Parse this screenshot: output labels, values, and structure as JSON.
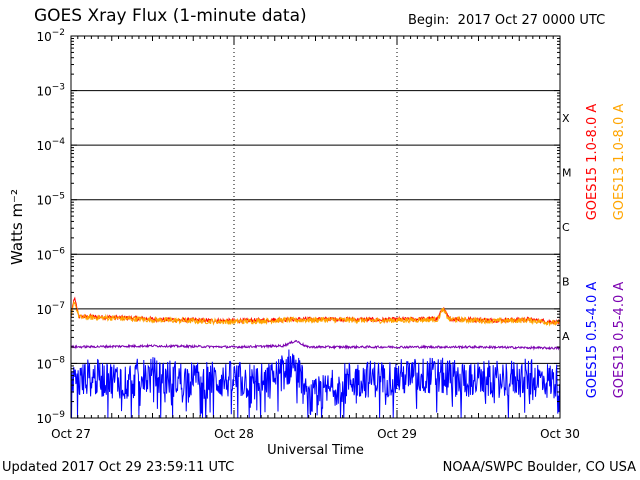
{
  "header": {
    "title": "GOES Xray Flux (1-minute data)",
    "begin_label": "Begin:",
    "begin_value": "2017 Oct 27 0000 UTC"
  },
  "footer": {
    "updated": "Updated 2017 Oct 29 23:59:11 UTC",
    "credit": "NOAA/SWPC Boulder, CO USA"
  },
  "chart_data": {
    "type": "line",
    "title": "GOES Xray Flux (1-minute data)",
    "xlabel": "Universal Time",
    "ylabel": "Watts m⁻²",
    "y_scale": "log",
    "ylim": [
      1e-09,
      0.01
    ],
    "xlim": [
      0,
      3
    ],
    "x_ticks": [
      {
        "value": 0,
        "label": "Oct 27"
      },
      {
        "value": 1,
        "label": "Oct 28"
      },
      {
        "value": 2,
        "label": "Oct 29"
      },
      {
        "value": 3,
        "label": "Oct 30"
      }
    ],
    "y_ticks": [
      {
        "value": 0.01,
        "base": "10",
        "exp": "−2"
      },
      {
        "value": 0.001,
        "base": "10",
        "exp": "−3"
      },
      {
        "value": 0.0001,
        "base": "10",
        "exp": "−4"
      },
      {
        "value": 1e-05,
        "base": "10",
        "exp": "−5"
      },
      {
        "value": 1e-06,
        "base": "10",
        "exp": "−6"
      },
      {
        "value": 1e-07,
        "base": "10",
        "exp": "−7"
      },
      {
        "value": 1e-08,
        "base": "10",
        "exp": "−8"
      },
      {
        "value": 1e-09,
        "base": "10",
        "exp": "−9"
      }
    ],
    "flare_classes": [
      {
        "label": "X",
        "lower": 0.0001
      },
      {
        "label": "M",
        "lower": 1e-05
      },
      {
        "label": "C",
        "lower": 1e-06
      },
      {
        "label": "B",
        "lower": 1e-07
      },
      {
        "label": "A",
        "lower": 1e-08
      }
    ],
    "grid": true,
    "legend_position": "right, rotated",
    "series": [
      {
        "name": "GOES15 1.0-8.0 A",
        "color": "#ff0000",
        "points": [
          [
            0,
            6.8e-08
          ],
          [
            0.02,
            1.6e-07
          ],
          [
            0.05,
            7.2e-08
          ],
          [
            0.25,
            7e-08
          ],
          [
            0.5,
            6.5e-08
          ],
          [
            0.75,
            6.2e-08
          ],
          [
            1.0,
            6e-08
          ],
          [
            1.3,
            6.4e-08
          ],
          [
            1.6,
            6.5e-08
          ],
          [
            1.9,
            6.3e-08
          ],
          [
            2.25,
            6.6e-08
          ],
          [
            2.28,
            1.05e-07
          ],
          [
            2.32,
            6.6e-08
          ],
          [
            2.6,
            6.2e-08
          ],
          [
            2.8,
            6.4e-08
          ],
          [
            3.0,
            5.6e-08
          ]
        ]
      },
      {
        "name": "GOES13 1.0-8.0 A",
        "color": "#ffa500",
        "points": [
          [
            0,
            6.6e-08
          ],
          [
            0.02,
            1.4e-07
          ],
          [
            0.05,
            7e-08
          ],
          [
            0.25,
            6.8e-08
          ],
          [
            0.5,
            6.3e-08
          ],
          [
            0.75,
            6e-08
          ],
          [
            1.0,
            5.8e-08
          ],
          [
            1.3,
            6.2e-08
          ],
          [
            1.6,
            6.3e-08
          ],
          [
            1.9,
            6.1e-08
          ],
          [
            2.25,
            6.4e-08
          ],
          [
            2.28,
            9.8e-08
          ],
          [
            2.32,
            6.4e-08
          ],
          [
            2.6,
            6e-08
          ],
          [
            2.8,
            6.2e-08
          ],
          [
            3.0,
            5.4e-08
          ]
        ]
      },
      {
        "name": "GOES15 0.5-4.0 A",
        "color": "#0000ff",
        "points": [
          [
            0,
            4e-09
          ],
          [
            0.1,
            5.5e-09
          ],
          [
            0.3,
            5e-09
          ],
          [
            0.5,
            6e-09
          ],
          [
            0.7,
            5e-09
          ],
          [
            1.0,
            5e-09
          ],
          [
            1.2,
            4.5e-09
          ],
          [
            1.3,
            7e-09
          ],
          [
            1.38,
            1.1e-08
          ],
          [
            1.45,
            2e-09
          ],
          [
            1.7,
            5e-09
          ],
          [
            2.0,
            5.5e-09
          ],
          [
            2.2,
            6e-09
          ],
          [
            2.5,
            5e-09
          ],
          [
            2.8,
            5.5e-09
          ],
          [
            3.0,
            4.5e-09
          ]
        ]
      },
      {
        "name": "GOES13 0.5-4.0 A",
        "color": "#7b00b0",
        "points": [
          [
            0,
            2e-08
          ],
          [
            0.5,
            2.1e-08
          ],
          [
            1.0,
            2e-08
          ],
          [
            1.3,
            2.1e-08
          ],
          [
            1.38,
            2.6e-08
          ],
          [
            1.45,
            2e-08
          ],
          [
            2.0,
            2e-08
          ],
          [
            2.5,
            2e-08
          ],
          [
            3.0,
            1.9e-08
          ]
        ]
      }
    ]
  }
}
